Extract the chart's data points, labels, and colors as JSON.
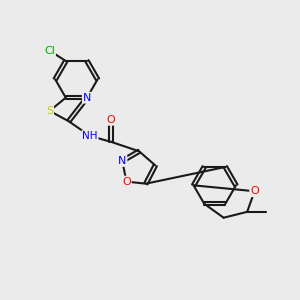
{
  "background_color": "#ebebeb",
  "bond_color": "#1a1a1a",
  "bond_width": 1.5,
  "dbo": 0.055,
  "atom_colors": {
    "N": "#0000ff",
    "O": "#ff0000",
    "S": "#cccc00",
    "Cl": "#00aa00",
    "C": "#1a1a1a",
    "H": "#555555"
  },
  "font_size": 7.5
}
